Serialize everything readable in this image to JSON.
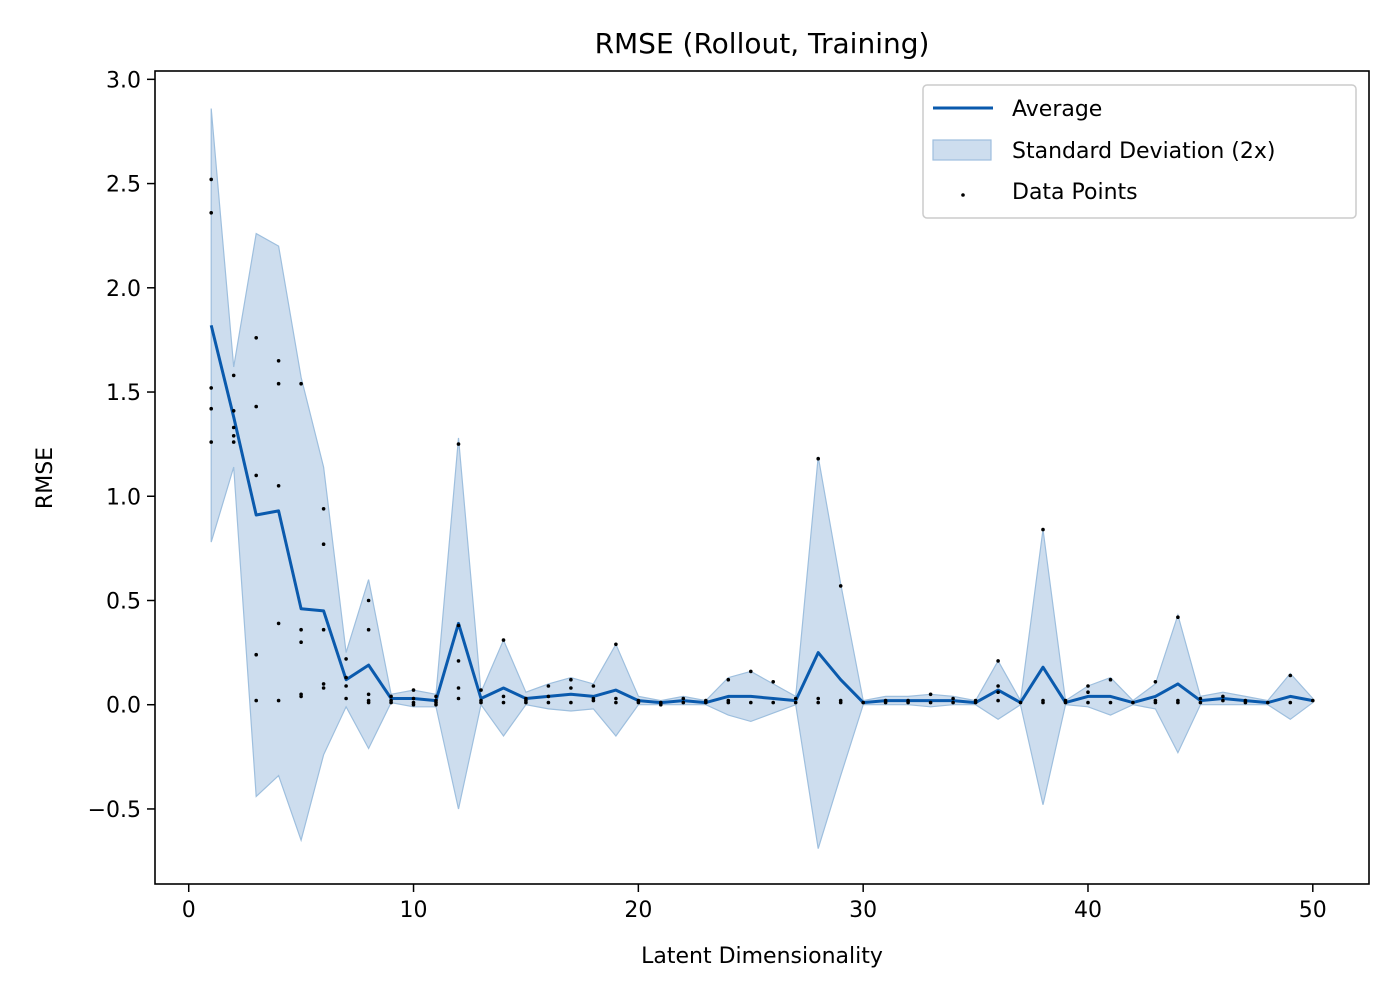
{
  "colors": {
    "line": "#0a5aad",
    "band": "#bcd1e8",
    "band_edge": "#9ebfde",
    "points": "#000000",
    "axes": "#000000"
  },
  "chart_data": {
    "type": "line",
    "title": "RMSE (Rollout, Training)",
    "xlabel": "Latent Dimensionality",
    "ylabel": "RMSE",
    "xlim": [
      -1.5,
      52.5
    ],
    "ylim": [
      -0.86,
      3.04
    ],
    "xticks": [
      0,
      10,
      20,
      30,
      40,
      50
    ],
    "xtick_labels": [
      "0",
      "10",
      "20",
      "30",
      "40",
      "50"
    ],
    "yticks": [
      -0.5,
      0.0,
      0.5,
      1.0,
      1.5,
      2.0,
      2.5,
      3.0
    ],
    "ytick_labels": [
      "−0.5",
      "0.0",
      "0.5",
      "1.0",
      "1.5",
      "2.0",
      "2.5",
      "3.0"
    ],
    "grid": false,
    "legend": {
      "position": "top-right",
      "entries": [
        "Average",
        "Standard Deviation (2x)",
        "Data Points"
      ]
    },
    "series": [
      {
        "name": "Average",
        "x": [
          1,
          2,
          3,
          4,
          5,
          6,
          7,
          8,
          9,
          10,
          11,
          12,
          13,
          14,
          15,
          16,
          17,
          18,
          19,
          20,
          21,
          22,
          23,
          24,
          25,
          26,
          27,
          28,
          29,
          30,
          31,
          32,
          33,
          34,
          35,
          36,
          37,
          38,
          39,
          40,
          41,
          42,
          43,
          44,
          45,
          46,
          47,
          48,
          49,
          50
        ],
        "values": [
          1.82,
          1.38,
          0.91,
          0.93,
          0.46,
          0.45,
          0.12,
          0.19,
          0.03,
          0.03,
          0.02,
          0.39,
          0.03,
          0.08,
          0.03,
          0.04,
          0.05,
          0.04,
          0.07,
          0.02,
          0.01,
          0.02,
          0.01,
          0.04,
          0.04,
          0.03,
          0.02,
          0.25,
          0.12,
          0.01,
          0.02,
          0.02,
          0.02,
          0.02,
          0.01,
          0.07,
          0.01,
          0.18,
          0.01,
          0.04,
          0.04,
          0.01,
          0.04,
          0.1,
          0.02,
          0.03,
          0.02,
          0.01,
          0.04,
          0.02
        ]
      },
      {
        "name": "Standard Deviation (2x)",
        "x": [
          1,
          2,
          3,
          4,
          5,
          6,
          7,
          8,
          9,
          10,
          11,
          12,
          13,
          14,
          15,
          16,
          17,
          18,
          19,
          20,
          21,
          22,
          23,
          24,
          25,
          26,
          27,
          28,
          29,
          30,
          31,
          32,
          33,
          34,
          35,
          36,
          37,
          38,
          39,
          40,
          41,
          42,
          43,
          44,
          45,
          46,
          47,
          48,
          49,
          50
        ],
        "lower": [
          0.78,
          1.14,
          -0.44,
          -0.34,
          -0.65,
          -0.24,
          -0.01,
          -0.21,
          0.01,
          -0.01,
          -0.01,
          -0.5,
          0.0,
          -0.15,
          0.0,
          -0.02,
          -0.03,
          -0.02,
          -0.15,
          0.0,
          0.0,
          0.0,
          0.0,
          -0.05,
          -0.08,
          -0.04,
          0.0,
          -0.69,
          -0.34,
          0.0,
          0.0,
          0.0,
          -0.01,
          0.0,
          0.0,
          -0.07,
          0.0,
          -0.48,
          0.0,
          -0.01,
          -0.05,
          0.0,
          -0.02,
          -0.23,
          0.0,
          0.0,
          0.0,
          0.0,
          -0.07,
          0.01
        ],
        "upper": [
          2.86,
          1.62,
          2.26,
          2.2,
          1.57,
          1.14,
          0.25,
          0.6,
          0.05,
          0.07,
          0.05,
          1.28,
          0.06,
          0.31,
          0.06,
          0.1,
          0.13,
          0.1,
          0.29,
          0.04,
          0.02,
          0.04,
          0.02,
          0.13,
          0.16,
          0.1,
          0.04,
          1.19,
          0.58,
          0.02,
          0.04,
          0.04,
          0.05,
          0.04,
          0.02,
          0.21,
          0.02,
          0.84,
          0.02,
          0.09,
          0.13,
          0.02,
          0.1,
          0.43,
          0.04,
          0.06,
          0.04,
          0.02,
          0.15,
          0.03
        ]
      },
      {
        "name": "Data Points",
        "points": [
          [
            1,
            2.52
          ],
          [
            1,
            2.36
          ],
          [
            1,
            1.52
          ],
          [
            1,
            1.42
          ],
          [
            1,
            1.26
          ],
          [
            2,
            1.58
          ],
          [
            2,
            1.41
          ],
          [
            2,
            1.33
          ],
          [
            2,
            1.29
          ],
          [
            2,
            1.26
          ],
          [
            3,
            1.76
          ],
          [
            3,
            1.43
          ],
          [
            3,
            1.1
          ],
          [
            3,
            0.24
          ],
          [
            3,
            0.02
          ],
          [
            4,
            1.65
          ],
          [
            4,
            1.54
          ],
          [
            4,
            1.05
          ],
          [
            4,
            0.39
          ],
          [
            4,
            0.02
          ],
          [
            5,
            1.54
          ],
          [
            5,
            0.36
          ],
          [
            5,
            0.3
          ],
          [
            5,
            0.05
          ],
          [
            5,
            0.04
          ],
          [
            6,
            0.94
          ],
          [
            6,
            0.77
          ],
          [
            6,
            0.36
          ],
          [
            6,
            0.1
          ],
          [
            6,
            0.08
          ],
          [
            7,
            0.22
          ],
          [
            7,
            0.13
          ],
          [
            7,
            0.09
          ],
          [
            7,
            0.03
          ],
          [
            8,
            0.5
          ],
          [
            8,
            0.36
          ],
          [
            8,
            0.05
          ],
          [
            8,
            0.02
          ],
          [
            8,
            0.01
          ],
          [
            9,
            0.04
          ],
          [
            9,
            0.02
          ],
          [
            9,
            0.01
          ],
          [
            10,
            0.07
          ],
          [
            10,
            0.03
          ],
          [
            10,
            0.01
          ],
          [
            10,
            0.0
          ],
          [
            11,
            0.04
          ],
          [
            11,
            0.02
          ],
          [
            11,
            0.01
          ],
          [
            11,
            0.0
          ],
          [
            12,
            1.25
          ],
          [
            12,
            0.38
          ],
          [
            12,
            0.21
          ],
          [
            12,
            0.08
          ],
          [
            12,
            0.03
          ],
          [
            13,
            0.07
          ],
          [
            13,
            0.02
          ],
          [
            13,
            0.01
          ],
          [
            14,
            0.31
          ],
          [
            14,
            0.04
          ],
          [
            14,
            0.01
          ],
          [
            15,
            0.03
          ],
          [
            15,
            0.02
          ],
          [
            15,
            0.01
          ],
          [
            16,
            0.09
          ],
          [
            16,
            0.04
          ],
          [
            16,
            0.01
          ],
          [
            17,
            0.12
          ],
          [
            17,
            0.08
          ],
          [
            17,
            0.01
          ],
          [
            18,
            0.09
          ],
          [
            18,
            0.03
          ],
          [
            18,
            0.02
          ],
          [
            19,
            0.29
          ],
          [
            19,
            0.03
          ],
          [
            19,
            0.01
          ],
          [
            20,
            0.02
          ],
          [
            20,
            0.01
          ],
          [
            21,
            0.01
          ],
          [
            21,
            0.0
          ],
          [
            22,
            0.03
          ],
          [
            22,
            0.01
          ],
          [
            23,
            0.02
          ],
          [
            23,
            0.01
          ],
          [
            24,
            0.12
          ],
          [
            24,
            0.02
          ],
          [
            24,
            0.01
          ],
          [
            25,
            0.16
          ],
          [
            25,
            0.01
          ],
          [
            26,
            0.11
          ],
          [
            26,
            0.01
          ],
          [
            27,
            0.03
          ],
          [
            27,
            0.01
          ],
          [
            28,
            1.18
          ],
          [
            28,
            0.03
          ],
          [
            28,
            0.01
          ],
          [
            29,
            0.57
          ],
          [
            29,
            0.02
          ],
          [
            29,
            0.01
          ],
          [
            30,
            0.01
          ],
          [
            31,
            0.02
          ],
          [
            31,
            0.01
          ],
          [
            32,
            0.02
          ],
          [
            32,
            0.01
          ],
          [
            33,
            0.05
          ],
          [
            33,
            0.01
          ],
          [
            34,
            0.03
          ],
          [
            34,
            0.01
          ],
          [
            35,
            0.02
          ],
          [
            35,
            0.01
          ],
          [
            36,
            0.21
          ],
          [
            36,
            0.09
          ],
          [
            36,
            0.06
          ],
          [
            36,
            0.02
          ],
          [
            37,
            0.01
          ],
          [
            38,
            0.84
          ],
          [
            38,
            0.02
          ],
          [
            38,
            0.01
          ],
          [
            39,
            0.02
          ],
          [
            39,
            0.01
          ],
          [
            40,
            0.09
          ],
          [
            40,
            0.06
          ],
          [
            40,
            0.01
          ],
          [
            41,
            0.12
          ],
          [
            41,
            0.01
          ],
          [
            42,
            0.01
          ],
          [
            43,
            0.11
          ],
          [
            43,
            0.02
          ],
          [
            43,
            0.01
          ],
          [
            44,
            0.42
          ],
          [
            44,
            0.02
          ],
          [
            44,
            0.01
          ],
          [
            45,
            0.03
          ],
          [
            45,
            0.01
          ],
          [
            46,
            0.04
          ],
          [
            46,
            0.02
          ],
          [
            47,
            0.02
          ],
          [
            47,
            0.01
          ],
          [
            48,
            0.01
          ],
          [
            49,
            0.14
          ],
          [
            49,
            0.01
          ],
          [
            50,
            0.02
          ]
        ]
      }
    ]
  }
}
